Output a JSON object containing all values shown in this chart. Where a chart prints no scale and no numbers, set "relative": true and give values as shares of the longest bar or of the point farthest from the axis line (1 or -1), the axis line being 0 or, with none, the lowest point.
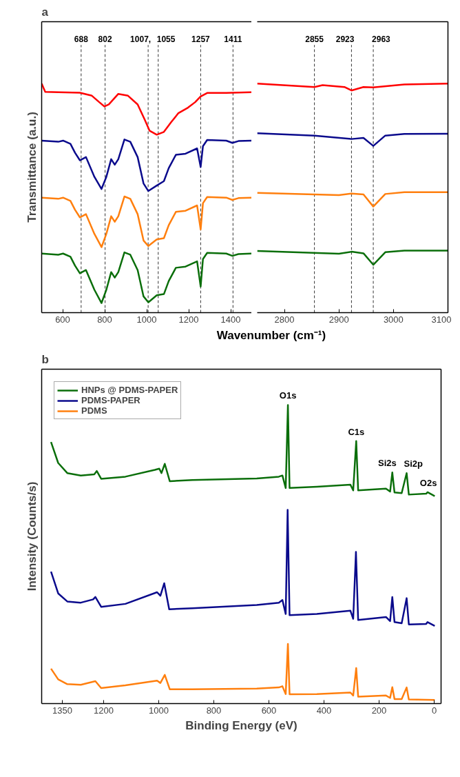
{
  "chart_data": [
    {
      "type": "line",
      "title": "a",
      "ylabel": "Transmittance (a.u.)",
      "xlabel": "Wavenumber (cm⁻¹)",
      "relative": true,
      "grid": false,
      "legend": false,
      "line_style": "solid",
      "xlim": [
        500,
        1500
      ],
      "xticks": [
        600,
        800,
        1000,
        1200,
        1400
      ],
      "ref_lines": [
        {
          "axis": "x",
          "value": 688,
          "label": "688",
          "line_style": "dashed",
          "color": "#333333"
        },
        {
          "axis": "x",
          "value": 802,
          "label": "802",
          "line_style": "dashed",
          "color": "#333333"
        },
        {
          "axis": "x",
          "value": 1007,
          "label": "1007,",
          "line_style": "dashed",
          "color": "#333333"
        },
        {
          "axis": "x",
          "value": 1055,
          "label": "1055",
          "line_style": "dashed",
          "color": "#333333"
        },
        {
          "axis": "x",
          "value": 1257,
          "label": "1257",
          "line_style": "dashed",
          "color": "#333333"
        },
        {
          "axis": "x",
          "value": 1411,
          "label": "1411",
          "line_style": "dashed",
          "color": "#333333"
        }
      ],
      "series": [
        {
          "color": "#ff0000",
          "x": [
            500,
            517,
            579,
            682,
            739,
            774,
            799,
            820,
            865,
            911,
            957,
            991,
            1014,
            1048,
            1082,
            1117,
            1151,
            1197,
            1231,
            1256,
            1288,
            1379,
            1499
          ],
          "values": [
            1.0,
            0.964,
            0.962,
            0.96,
            0.947,
            0.919,
            0.9,
            0.909,
            0.955,
            0.947,
            0.909,
            0.842,
            0.794,
            0.777,
            0.789,
            0.832,
            0.871,
            0.895,
            0.919,
            0.943,
            0.959,
            0.959,
            0.962
          ]
        },
        {
          "color": "#0a0a8c",
          "x": [
            500,
            579,
            602,
            637,
            659,
            682,
            711,
            751,
            785,
            808,
            831,
            848,
            865,
            894,
            922,
            957,
            985,
            1008,
            1048,
            1082,
            1105,
            1139,
            1185,
            1240,
            1257,
            1268,
            1288,
            1379,
            1408,
            1437,
            1499
          ],
          "values": [
            0.751,
            0.746,
            0.751,
            0.737,
            0.698,
            0.665,
            0.679,
            0.593,
            0.54,
            0.593,
            0.67,
            0.646,
            0.67,
            0.756,
            0.746,
            0.679,
            0.564,
            0.531,
            0.555,
            0.574,
            0.631,
            0.689,
            0.694,
            0.717,
            0.636,
            0.727,
            0.754,
            0.751,
            0.741,
            0.749,
            0.751
          ]
        },
        {
          "color": "#ff7f0e",
          "x": [
            500,
            579,
            602,
            637,
            659,
            682,
            711,
            751,
            785,
            808,
            831,
            848,
            865,
            894,
            922,
            957,
            985,
            1008,
            1048,
            1082,
            1105,
            1139,
            1185,
            1240,
            1257,
            1268,
            1288,
            1379,
            1408,
            1437,
            1499
          ],
          "values": [
            0.502,
            0.497,
            0.502,
            0.488,
            0.449,
            0.416,
            0.43,
            0.344,
            0.286,
            0.344,
            0.421,
            0.397,
            0.421,
            0.507,
            0.497,
            0.43,
            0.315,
            0.291,
            0.32,
            0.325,
            0.382,
            0.44,
            0.445,
            0.468,
            0.363,
            0.478,
            0.505,
            0.502,
            0.492,
            0.5,
            0.502
          ]
        },
        {
          "color": "#0a6e0a",
          "x": [
            500,
            579,
            602,
            637,
            659,
            682,
            711,
            751,
            785,
            808,
            831,
            848,
            865,
            894,
            922,
            957,
            985,
            1008,
            1048,
            1082,
            1105,
            1139,
            1185,
            1240,
            1257,
            1268,
            1288,
            1379,
            1408,
            1437,
            1499
          ],
          "values": [
            0.258,
            0.253,
            0.258,
            0.244,
            0.205,
            0.172,
            0.186,
            0.1,
            0.042,
            0.1,
            0.177,
            0.153,
            0.177,
            0.263,
            0.253,
            0.186,
            0.071,
            0.045,
            0.076,
            0.081,
            0.138,
            0.196,
            0.201,
            0.224,
            0.114,
            0.234,
            0.261,
            0.258,
            0.248,
            0.256,
            0.258
          ]
        }
      ]
    },
    {
      "type": "line",
      "relative": true,
      "grid": false,
      "legend": false,
      "line_style": "solid",
      "xlim": [
        2750,
        3100
      ],
      "xticks": [
        2800,
        2900,
        3000,
        3100
      ],
      "ref_lines": [
        {
          "axis": "x",
          "value": 2855,
          "label": "2855",
          "line_style": "dashed",
          "color": "#333333"
        },
        {
          "axis": "x",
          "value": 2923,
          "label": "2923",
          "line_style": "dashed",
          "color": "#333333"
        },
        {
          "axis": "x",
          "value": 2963,
          "label": "2963",
          "line_style": "dashed",
          "color": "#333333"
        }
      ],
      "series": [
        {
          "color": "#ff0000",
          "x": [
            2750,
            2855,
            2870,
            2910,
            2923,
            2945,
            2963,
            3020,
            3100
          ],
          "values": [
            1.0,
            0.985,
            0.993,
            0.985,
            0.97,
            0.985,
            0.983,
            0.996,
            1.0
          ]
        },
        {
          "color": "#0a0a8c",
          "x": [
            2750,
            2855,
            2923,
            2945,
            2963,
            2985,
            3020,
            3100
          ],
          "values": [
            0.783,
            0.773,
            0.758,
            0.763,
            0.728,
            0.773,
            0.78,
            0.781
          ]
        },
        {
          "color": "#ff7f0e",
          "x": [
            2750,
            2900,
            2923,
            2945,
            2963,
            2985,
            3020,
            3100
          ],
          "values": [
            0.523,
            0.513,
            0.52,
            0.516,
            0.463,
            0.518,
            0.526,
            0.526
          ]
        },
        {
          "color": "#0a6e0a",
          "x": [
            2750,
            2900,
            2923,
            2945,
            2963,
            2985,
            3020,
            3100
          ],
          "values": [
            0.269,
            0.257,
            0.266,
            0.259,
            0.209,
            0.264,
            0.271,
            0.271
          ]
        }
      ]
    },
    {
      "type": "line",
      "title": "b",
      "xlabel": "Binding Energy (eV)",
      "ylabel": "Intensity (Counts/s)",
      "relative": true,
      "grid": false,
      "legend": "top left",
      "line_style": "solid",
      "xlim": [
        1425,
        -25
      ],
      "xticks": [
        1350,
        1200,
        1000,
        800,
        600,
        400,
        200,
        0
      ],
      "annotations": [
        {
          "text": "O1s",
          "x": 531,
          "y": 1.0
        },
        {
          "text": "C1s",
          "x": 283,
          "y": 0.879
        },
        {
          "text": "Si2s",
          "x": 152,
          "y": 0.774
        },
        {
          "text": "Si2p",
          "x": 100,
          "y": 0.772
        },
        {
          "text": "O2s",
          "x": 21,
          "y": 0.708
        }
      ],
      "series": [
        {
          "name": "HNPs @ PDMS-PAPER",
          "color": "#0a6e0a",
          "x": [
            1391,
            1365,
            1332,
            1283,
            1234,
            1225,
            1209,
            1121,
            1014,
            998,
            990,
            978,
            960,
            878,
            644,
            564,
            551,
            539,
            531,
            525,
            426,
            304,
            294,
            283,
            276,
            175,
            160,
            152,
            144,
            118,
            100,
            92,
            29,
            24,
            -2
          ],
          "values": [
            0.876,
            0.806,
            0.772,
            0.764,
            0.768,
            0.779,
            0.753,
            0.76,
            0.783,
            0.787,
            0.772,
            0.803,
            0.745,
            0.749,
            0.754,
            0.76,
            0.764,
            0.722,
            1.0,
            0.722,
            0.726,
            0.733,
            0.714,
            0.879,
            0.714,
            0.72,
            0.71,
            0.774,
            0.707,
            0.705,
            0.772,
            0.7,
            0.703,
            0.708,
            0.695
          ]
        },
        {
          "name": "PDMS-PAPER",
          "color": "#0a0a8c",
          "x": [
            1391,
            1365,
            1332,
            1283,
            1238,
            1230,
            1209,
            1121,
            1006,
            994,
            980,
            962,
            878,
            644,
            564,
            551,
            539,
            532,
            525,
            426,
            304,
            294,
            284,
            276,
            175,
            160,
            152,
            144,
            118,
            100,
            92,
            29,
            24,
            -2
          ],
          "values": [
            0.442,
            0.369,
            0.342,
            0.338,
            0.349,
            0.357,
            0.324,
            0.334,
            0.373,
            0.361,
            0.403,
            0.316,
            0.319,
            0.33,
            0.338,
            0.347,
            0.3,
            0.649,
            0.296,
            0.3,
            0.311,
            0.284,
            0.508,
            0.28,
            0.29,
            0.276,
            0.357,
            0.273,
            0.269,
            0.353,
            0.265,
            0.267,
            0.273,
            0.26
          ]
        },
        {
          "name": "PDMS",
          "color": "#ff7f0e",
          "x": [
            1391,
            1365,
            1332,
            1283,
            1230,
            1209,
            1121,
            1006,
            994,
            978,
            960,
            878,
            644,
            564,
            551,
            539,
            531,
            525,
            426,
            304,
            294,
            283,
            276,
            175,
            160,
            152,
            144,
            118,
            100,
            92,
            -2
          ],
          "values": [
            0.117,
            0.081,
            0.065,
            0.063,
            0.075,
            0.052,
            0.061,
            0.077,
            0.069,
            0.096,
            0.048,
            0.048,
            0.05,
            0.054,
            0.058,
            0.032,
            0.2,
            0.031,
            0.032,
            0.037,
            0.027,
            0.119,
            0.023,
            0.027,
            0.019,
            0.055,
            0.015,
            0.015,
            0.054,
            0.014,
            0.012
          ]
        }
      ]
    }
  ]
}
